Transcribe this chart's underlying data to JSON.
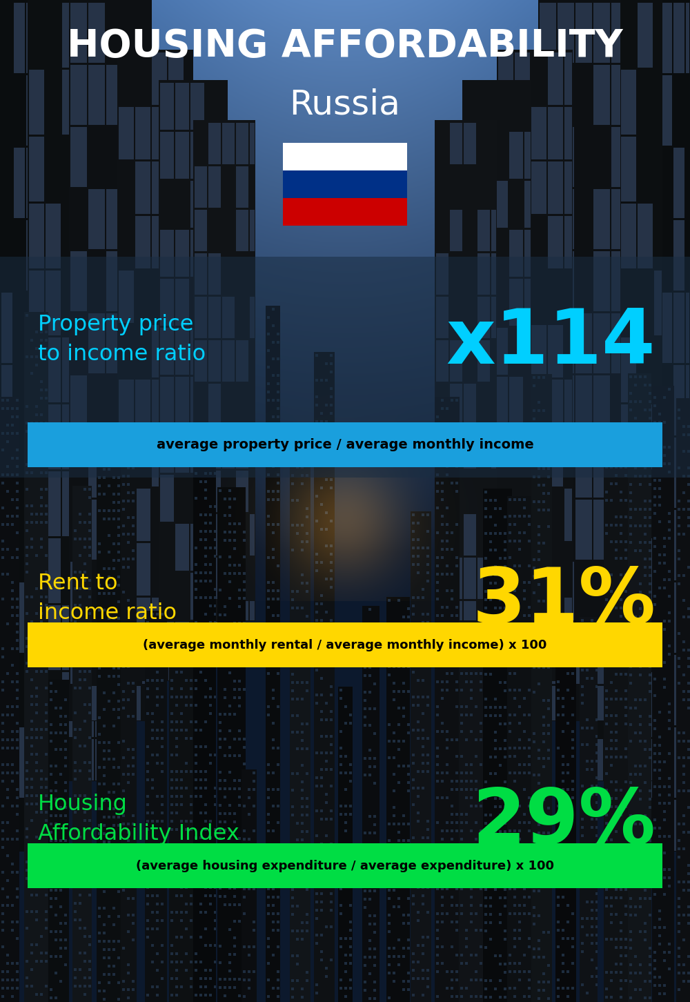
{
  "title_line1": "HOUSING AFFORDABILITY",
  "title_line2": "Russia",
  "bg_color": "#0a1520",
  "title1_color": "#ffffff",
  "title2_color": "#ffffff",
  "section1_label": "Property price\nto income ratio",
  "section1_value": "x114",
  "section1_label_color": "#00cfff",
  "section1_value_color": "#00cfff",
  "section1_formula": "average property price / average monthly income",
  "section1_formula_bg": "#1a9fdd",
  "section1_formula_color": "#000000",
  "section2_label": "Rent to\nincome ratio",
  "section2_value": "31%",
  "section2_label_color": "#ffd700",
  "section2_value_color": "#ffd700",
  "section2_formula": "(average monthly rental / average monthly income) x 100",
  "section2_formula_bg": "#ffd700",
  "section2_formula_color": "#000000",
  "section3_label": "Housing\nAffordability Index",
  "section3_value": "29%",
  "section3_label_color": "#00dd44",
  "section3_value_color": "#00dd44",
  "section3_formula": "(average housing expenditure / average expenditure) x 100",
  "section3_formula_bg": "#00dd44",
  "section3_formula_color": "#000000",
  "flag_white": "#ffffff",
  "flag_blue": "#003087",
  "flag_red": "#cc0000",
  "panel1_color": "#1a2a3a",
  "panel2_color": "#0a1520"
}
